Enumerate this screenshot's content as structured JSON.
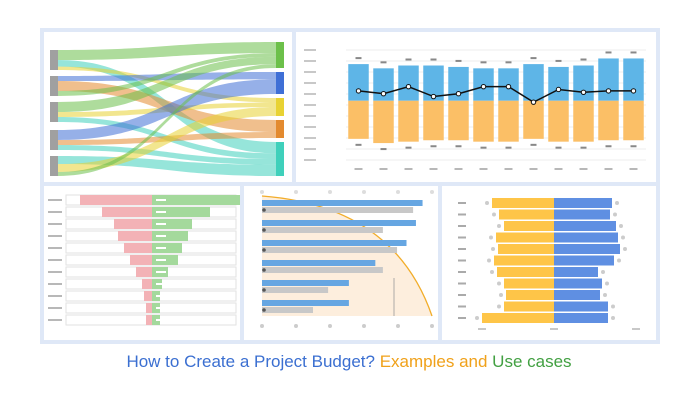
{
  "caption": {
    "part1": "How to Create a Project Budget?",
    "part2": "Examples and",
    "part3": "Use cases",
    "colors": {
      "part1": "#3b6fd1",
      "part2": "#f0a11a",
      "part3": "#42a042"
    }
  },
  "chart_data": [
    {
      "type": "sankey",
      "sources": 5,
      "targets": [
        "green",
        "blue",
        "yellow",
        "orange",
        "teal"
      ],
      "target_colors": [
        "#6cc04a",
        "#3f6fd6",
        "#e8d233",
        "#e38a2f",
        "#3fd0bb"
      ],
      "flows": [
        {
          "from": 0,
          "to": 0,
          "value": 3
        },
        {
          "from": 0,
          "to": 4,
          "value": 2
        },
        {
          "from": 0,
          "to": 2,
          "value": 1
        },
        {
          "from": 1,
          "to": 1,
          "value": 1
        },
        {
          "from": 1,
          "to": 3,
          "value": 2
        },
        {
          "from": 1,
          "to": 0,
          "value": 1
        },
        {
          "from": 2,
          "to": 0,
          "value": 2
        },
        {
          "from": 2,
          "to": 2,
          "value": 1
        },
        {
          "from": 2,
          "to": 4,
          "value": 1
        },
        {
          "from": 3,
          "to": 1,
          "value": 2
        },
        {
          "from": 3,
          "to": 3,
          "value": 1
        },
        {
          "from": 3,
          "to": 4,
          "value": 1
        },
        {
          "from": 4,
          "to": 4,
          "value": 2
        },
        {
          "from": 4,
          "to": 2,
          "value": 2
        },
        {
          "from": 4,
          "to": 0,
          "value": 1
        }
      ]
    },
    {
      "type": "bar",
      "subtype": "diverging-with-line",
      "categories_count": 12,
      "positive": [
        2.6,
        2.3,
        2.5,
        2.5,
        2.4,
        2.3,
        2.3,
        2.6,
        2.4,
        2.5,
        3.0,
        3.0
      ],
      "negative": [
        -2.7,
        -3.0,
        -2.9,
        -2.8,
        -2.8,
        -2.9,
        -2.9,
        -2.7,
        -2.9,
        -2.9,
        -2.8,
        -2.8
      ],
      "line": [
        0.7,
        0.5,
        1.0,
        0.3,
        0.5,
        1.0,
        1.0,
        -0.1,
        0.8,
        0.6,
        0.7,
        0.7
      ],
      "ylim": [
        -4.2,
        3.6
      ],
      "colors": {
        "positive": "#5eb5e7",
        "negative": "#fbbf66",
        "line": "#111111"
      }
    },
    {
      "type": "bar",
      "subtype": "funnel",
      "rows": 11,
      "left": [
        72,
        50,
        38,
        34,
        28,
        22,
        16,
        10,
        8,
        6,
        6
      ],
      "right": [
        88,
        58,
        40,
        36,
        30,
        26,
        16,
        10,
        8,
        8,
        8
      ],
      "colors": {
        "left": "#f3b2b6",
        "right": "#a4d99c"
      }
    },
    {
      "type": "bar",
      "subtype": "horizontal-comparison",
      "rows": 6,
      "blue": [
        170,
        163,
        153,
        120,
        92,
        92
      ],
      "gray": [
        160,
        128,
        143,
        128,
        70,
        54
      ],
      "xlim": [
        0,
        180
      ],
      "colors": {
        "blue": "#66a6e2",
        "gray": "#c8c8c8",
        "curve": "#f2ad2a",
        "area": "#fdeedd"
      }
    },
    {
      "type": "bar",
      "subtype": "butterfly",
      "rows": 11,
      "left": [
        62,
        55,
        50,
        58,
        56,
        60,
        57,
        50,
        48,
        50,
        72
      ],
      "right": [
        58,
        56,
        62,
        64,
        66,
        60,
        44,
        48,
        46,
        54,
        54
      ],
      "colors": {
        "left": "#fec548",
        "right": "#5f8fe2"
      }
    }
  ]
}
